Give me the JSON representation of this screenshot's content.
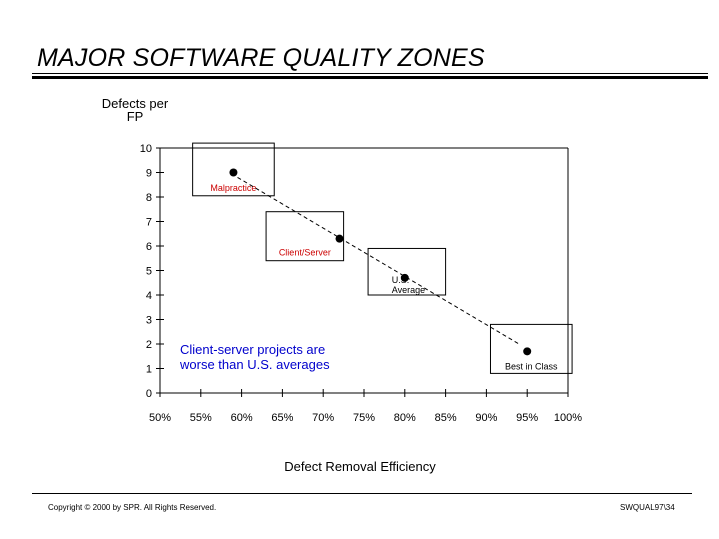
{
  "page": {
    "title": "MAJOR SOFTWARE QUALITY ZONES",
    "copyright": "Copyright © 2000 by SPR.  All Rights Reserved.",
    "doc_code": "SWQUAL97\\34"
  },
  "chart_data": {
    "type": "scatter",
    "title": "MAJOR SOFTWARE QUALITY ZONES",
    "xlabel": "Defect Removal Efficiency",
    "ylabel": "Defects per FP",
    "x_ticks": [
      "50%",
      "55%",
      "60%",
      "65%",
      "70%",
      "75%",
      "80%",
      "85%",
      "90%",
      "95%",
      "100%"
    ],
    "y_ticks": [
      "0",
      "1",
      "2",
      "3",
      "4",
      "5",
      "6",
      "7",
      "8",
      "9",
      "10"
    ],
    "xlim": [
      50,
      100
    ],
    "ylim": [
      0,
      10
    ],
    "points": [
      {
        "label": "Malpractice",
        "x": 59,
        "y": 9
      },
      {
        "label": "Client/Server",
        "x": 72,
        "y": 6.3
      },
      {
        "label": "U.S. Average",
        "x": 80,
        "y": 4.7
      },
      {
        "label": "Best in Class",
        "x": 95,
        "y": 1.7
      }
    ],
    "zones": [
      {
        "label": "Malpractice",
        "x": [
          54,
          64
        ],
        "y": [
          8.05,
          10.2
        ]
      },
      {
        "label": "Client/Server",
        "x": [
          63,
          72.5
        ],
        "y": [
          5.4,
          7.4
        ]
      },
      {
        "label": "U.S. Average",
        "x": [
          75.5,
          85
        ],
        "y": [
          4.0,
          5.9
        ]
      },
      {
        "label": "Best in Class",
        "x": [
          90.5,
          100.5
        ],
        "y": [
          0.8,
          2.8
        ]
      }
    ],
    "trend": {
      "x": [
        59.5,
        94
      ],
      "y": [
        8.8,
        2.0
      ],
      "style": "dashed"
    },
    "annotation": "Client-server projects are worse than U.S. averages",
    "grid": false,
    "colors": {
      "note": "#0000cc",
      "zone_label": "#cc0000",
      "ink": "#000000"
    }
  }
}
